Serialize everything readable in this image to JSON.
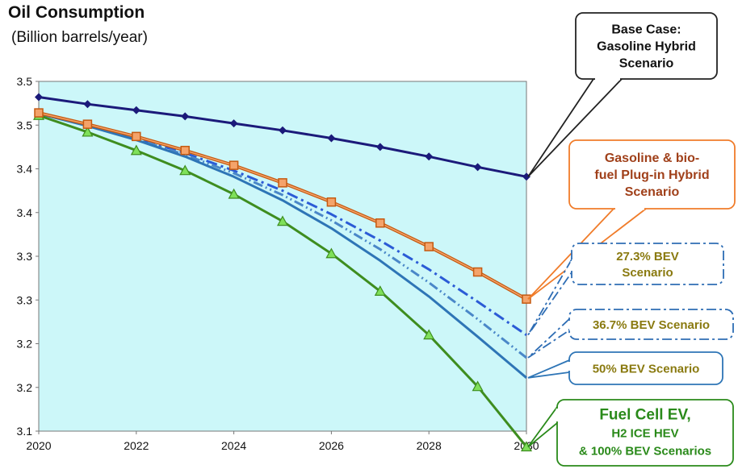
{
  "chart_data": {
    "type": "line",
    "title": "Oil Consumption",
    "subtitle": "(Billion barrels/year)",
    "xlabel": "",
    "ylabel": "",
    "x": [
      2020,
      2021,
      2022,
      2023,
      2024,
      2025,
      2026,
      2027,
      2028,
      2029,
      2030
    ],
    "x_tick_labels": [
      "2020",
      "2022",
      "2024",
      "2026",
      "2028",
      "2030"
    ],
    "y_tick_labels": [
      "3.1",
      "3.2",
      "3.2",
      "3.3",
      "3.3",
      "3.4",
      "3.4",
      "3.5",
      "3.5"
    ],
    "xlim": [
      2020,
      2030
    ],
    "ylim": [
      3.1,
      3.5
    ],
    "grid": false,
    "plot_background": "#ccf7f9",
    "series": [
      {
        "key": "base",
        "marker": "diamond",
        "color": "#1b1a7a",
        "dash": "",
        "values": [
          3.482,
          3.474,
          3.467,
          3.46,
          3.452,
          3.444,
          3.435,
          3.425,
          3.414,
          3.402,
          3.391
        ]
      },
      {
        "key": "phev",
        "marker": "square",
        "color": "#c55a11",
        "dash": "",
        "values": [
          3.464,
          3.451,
          3.437,
          3.421,
          3.404,
          3.384,
          3.362,
          3.338,
          3.311,
          3.282,
          3.251
        ]
      },
      {
        "key": "bev27",
        "marker": "none",
        "color": "#2b5bd6",
        "dash": "14 5 3 5",
        "values": [
          3.464,
          3.45,
          3.435,
          3.418,
          3.398,
          3.375,
          3.348,
          3.318,
          3.285,
          3.248,
          3.21
        ]
      },
      {
        "key": "bev36",
        "marker": "none",
        "color": "#4a87c8",
        "dash": "12 4 2 4 2 4",
        "values": [
          3.464,
          3.45,
          3.434,
          3.416,
          3.395,
          3.37,
          3.341,
          3.308,
          3.27,
          3.228,
          3.184
        ]
      },
      {
        "key": "bev50",
        "marker": "none",
        "color": "#2e75b6",
        "dash": "",
        "values": [
          3.463,
          3.449,
          3.433,
          3.414,
          3.391,
          3.364,
          3.332,
          3.295,
          3.254,
          3.208,
          3.161
        ]
      },
      {
        "key": "fcev",
        "marker": "triangle",
        "color": "#3e8d1f",
        "markerFill": "#7fe05a",
        "dash": "",
        "values": [
          3.461,
          3.442,
          3.421,
          3.398,
          3.371,
          3.34,
          3.303,
          3.26,
          3.21,
          3.151,
          3.082
        ]
      }
    ],
    "annotations": [
      {
        "key": "base",
        "lines": [
          "Base Case:",
          "Gasoline Hybrid",
          "Scenario"
        ],
        "color": "#111111",
        "border": "#222222",
        "style": "solid"
      },
      {
        "key": "phev",
        "lines": [
          "Gasoline & bio-",
          "fuel Plug-in Hybrid",
          "Scenario"
        ],
        "color": "#a0401a",
        "border": "#f07c2a",
        "style": "solid"
      },
      {
        "key": "bev27",
        "lines": [
          "27.3%  BEV",
          "Scenario"
        ],
        "color": "#8a7a10",
        "border": "#2e6db4",
        "style": "dashdot"
      },
      {
        "key": "bev36",
        "lines": [
          "36.7%  BEV Scenario"
        ],
        "color": "#8a7a10",
        "border": "#2e6db4",
        "style": "dashdot"
      },
      {
        "key": "bev50",
        "lines": [
          "50%  BEV Scenario"
        ],
        "color": "#8a7a10",
        "border": "#2e75b6",
        "style": "solid"
      },
      {
        "key": "fcev",
        "lines": [
          "Fuel Cell EV,",
          "H2 ICE HEV",
          "& 100%  BEV Scenarios"
        ],
        "color": "#2a8a1a",
        "border": "#2a8a1a",
        "style": "solid"
      }
    ]
  }
}
